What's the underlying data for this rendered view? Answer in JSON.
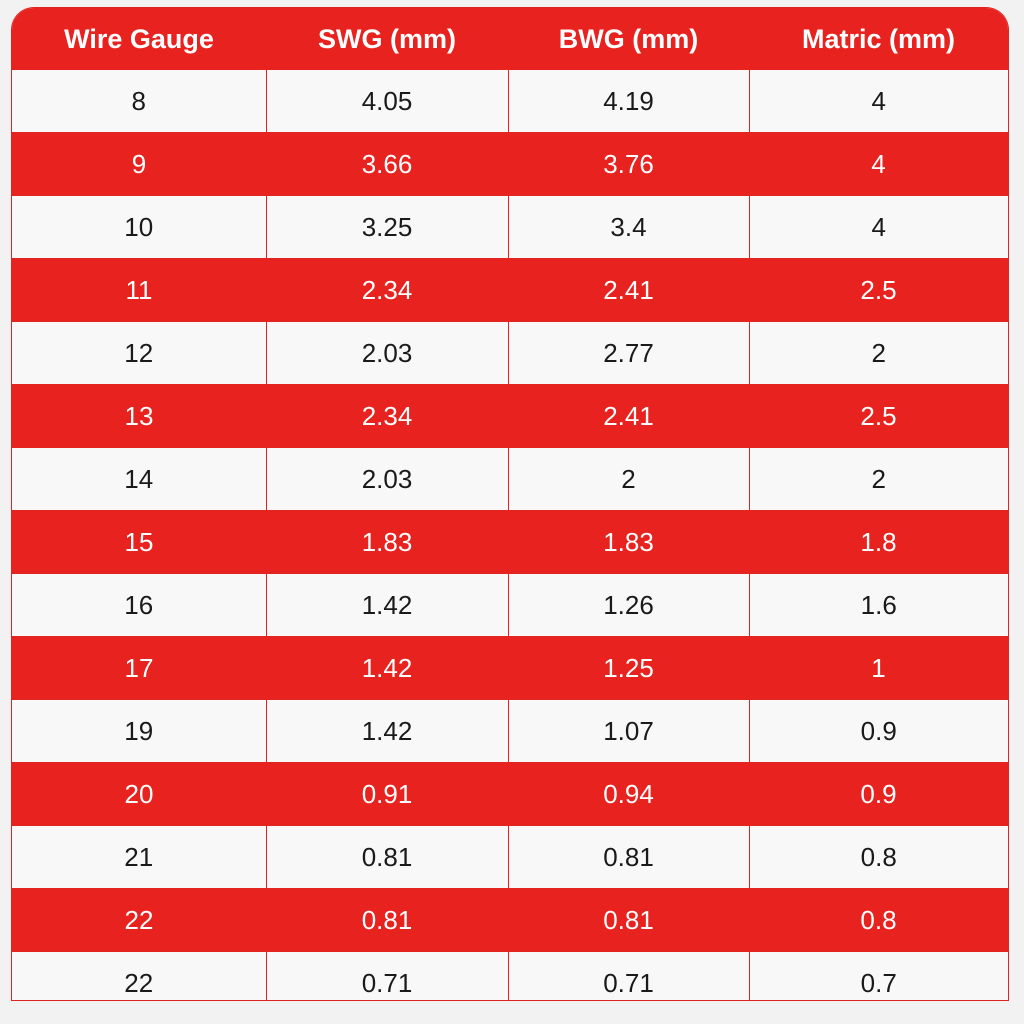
{
  "colors": {
    "accent": "#e8231f",
    "row_light": "#f8f8f8",
    "text_dark": "#1a1a1a",
    "text_light": "#ffffff"
  },
  "table": {
    "headers": [
      "Wire Gauge",
      "SWG (mm)",
      "BWG (mm)",
      "Matric (mm)"
    ],
    "rows": [
      [
        "8",
        "4.05",
        "4.19",
        "4"
      ],
      [
        "9",
        "3.66",
        "3.76",
        "4"
      ],
      [
        "10",
        "3.25",
        "3.4",
        "4"
      ],
      [
        "11",
        "2.34",
        "2.41",
        "2.5"
      ],
      [
        "12",
        "2.03",
        "2.77",
        "2"
      ],
      [
        "13",
        "2.34",
        "2.41",
        "2.5"
      ],
      [
        "14",
        "2.03",
        "2",
        "2"
      ],
      [
        "15",
        "1.83",
        "1.83",
        "1.8"
      ],
      [
        "16",
        "1.42",
        "1.26",
        "1.6"
      ],
      [
        "17",
        "1.42",
        "1.25",
        "1"
      ],
      [
        "19",
        "1.42",
        "1.07",
        "0.9"
      ],
      [
        "20",
        "0.91",
        "0.94",
        "0.9"
      ],
      [
        "21",
        "0.81",
        "0.81",
        "0.8"
      ],
      [
        "22",
        "0.81",
        "0.81",
        "0.8"
      ],
      [
        "22",
        "0.71",
        "0.71",
        "0.7"
      ]
    ]
  }
}
